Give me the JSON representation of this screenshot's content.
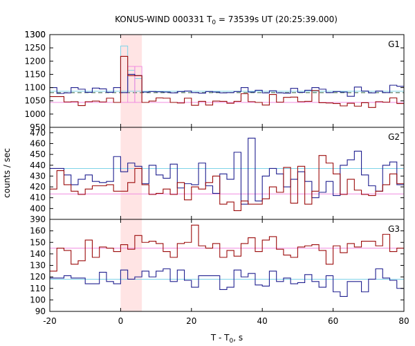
{
  "chart_data": {
    "type": "line",
    "title_main": "KONUS-WIND 000331 T",
    "title_sub": "0",
    "title_rest": " = 73539s UT (20:25:39.000)",
    "xlabel_main": "T - T",
    "xlabel_sub": "0",
    "xlabel_rest": ", s",
    "ylabel": "counts / sec",
    "xlim": [
      -20,
      80
    ],
    "x_ticks": [
      -20,
      0,
      20,
      40,
      60,
      80
    ],
    "bin_edges": [
      -20,
      -18,
      -16,
      -14,
      -12,
      -10,
      -8,
      -6,
      -4,
      -2,
      0,
      2,
      4,
      6,
      8,
      10,
      12,
      14,
      16,
      18,
      20,
      22,
      24,
      26,
      28,
      30,
      32,
      34,
      36,
      38,
      40,
      42,
      44,
      46,
      48,
      50,
      52,
      54,
      56,
      58,
      60,
      62,
      64,
      66,
      68,
      70,
      72,
      74,
      76,
      78,
      80
    ],
    "highlight": {
      "x": [
        0,
        6
      ],
      "color": "#ffe4e4"
    },
    "colors": {
      "blue": "#1f1f8f",
      "red": "#9b0a0a",
      "cyan": "#7ed3e8",
      "pink": "#f08ce0",
      "light_red": "#f07070",
      "dark_green": "#2f5f3f"
    },
    "panels": [
      {
        "label": "G1",
        "ylim": [
          950,
          1300
        ],
        "y_ticks": [
          950,
          1000,
          1050,
          1100,
          1150,
          1200,
          1250,
          1300
        ],
        "blue_bg": 1086,
        "red_bg": 1044,
        "dashed_bg": 1081,
        "blue": [
          1100,
          1078,
          1080,
          1100,
          1094,
          1082,
          1098,
          1095,
          1082,
          1100,
          1081,
          1150,
          1145,
          1083,
          1085,
          1084,
          1083,
          1080,
          1085,
          1087,
          1081,
          1079,
          1085,
          1083,
          1080,
          1081,
          1085,
          1100,
          1083,
          1090,
          1080,
          1088,
          1080,
          1079,
          1097,
          1082,
          1090,
          1100,
          1094,
          1081,
          1085,
          1083,
          1067,
          1102,
          1087,
          1080,
          1087,
          1081,
          1109,
          1105
        ],
        "red": [
          1066,
          1066,
          1046,
          1047,
          1032,
          1047,
          1049,
          1046,
          1060,
          1044,
          1218,
          1145,
          1145,
          1044,
          1049,
          1061,
          1060,
          1044,
          1042,
          1060,
          1033,
          1048,
          1034,
          1049,
          1048,
          1041,
          1048,
          1077,
          1047,
          1044,
          1034,
          1074,
          1045,
          1063,
          1064,
          1047,
          1048,
          1089,
          1043,
          1042,
          1040,
          1031,
          1041,
          1030,
          1043,
          1025,
          1047,
          1045,
          1061,
          1040
        ],
        "overlay_cyan": [
          {
            "x0": 0,
            "x1": 2,
            "y": 1257
          },
          {
            "x0": 2,
            "x1": 4,
            "y": 1165
          },
          {
            "x0": 4,
            "x1": 6,
            "y": 1134
          }
        ],
        "overlay_pink": [
          {
            "x0": 2,
            "x1": 4,
            "y": 1180
          },
          {
            "x0": 4,
            "x1": 6,
            "y": 1180
          }
        ]
      },
      {
        "label": "G2",
        "ylim": [
          390,
          475
        ],
        "y_ticks": [
          390,
          400,
          410,
          420,
          430,
          440,
          450,
          460,
          470
        ],
        "blue_bg": 437,
        "red_bg": 413.5,
        "blue": [
          437,
          437,
          431,
          422,
          427,
          431,
          425,
          424,
          425,
          448,
          434,
          442,
          439,
          423,
          440,
          431,
          428,
          441,
          419,
          423,
          422,
          442,
          421,
          414,
          432,
          427,
          452,
          404,
          465,
          407,
          430,
          437,
          432,
          420,
          427,
          434,
          425,
          410,
          415,
          425,
          412,
          440,
          445,
          453,
          431,
          421,
          416,
          440,
          443,
          422
        ],
        "red": [
          418,
          435,
          422,
          416,
          413,
          418,
          421,
          421,
          422,
          416,
          416,
          424,
          437,
          422,
          413,
          414,
          418,
          413,
          424,
          408,
          420,
          418,
          424,
          430,
          404,
          406,
          398,
          407,
          404,
          404,
          409,
          420,
          415,
          438,
          405,
          439,
          404,
          416,
          449,
          442,
          432,
          413,
          427,
          417,
          413,
          412,
          416,
          422,
          432,
          423
        ]
      },
      {
        "label": "G3",
        "ylim": [
          90,
          170
        ],
        "y_ticks": [
          90,
          100,
          110,
          120,
          130,
          140,
          150,
          160
        ],
        "blue_bg": 118,
        "red_bg": 145,
        "blue": [
          119,
          119,
          121,
          119,
          119,
          114,
          114,
          124,
          116,
          114,
          126,
          118,
          120,
          125,
          120,
          125,
          127,
          116,
          126,
          117,
          111,
          121,
          121,
          121,
          109,
          111,
          126,
          120,
          123,
          113,
          112,
          125,
          116,
          119,
          114,
          115,
          122,
          116,
          111,
          121,
          107,
          103,
          116,
          116,
          107,
          118,
          127,
          119,
          117,
          110
        ],
        "red": [
          125,
          145,
          143,
          131,
          134,
          152,
          137,
          146,
          145,
          142,
          148,
          144,
          156,
          150,
          151,
          149,
          142,
          137,
          149,
          150,
          165,
          147,
          145,
          149,
          137,
          143,
          138,
          149,
          154,
          142,
          152,
          155,
          144,
          139,
          137,
          146,
          147,
          148,
          143,
          131,
          147,
          141,
          149,
          146,
          151,
          151,
          147,
          157,
          142,
          145
        ]
      }
    ]
  }
}
